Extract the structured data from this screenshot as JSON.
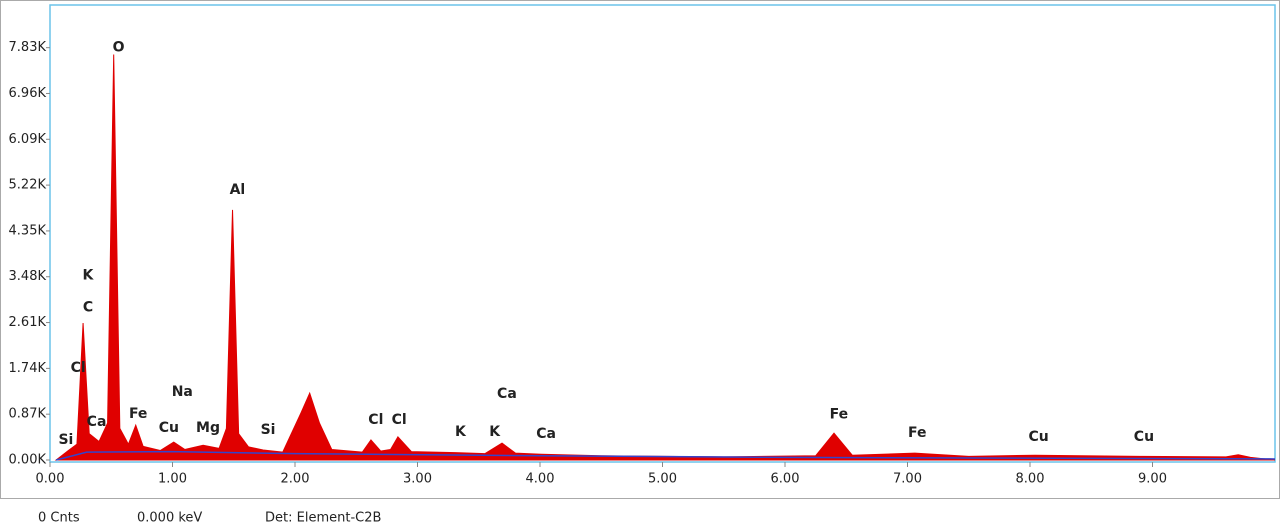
{
  "chart_data": {
    "type": "area",
    "xlim": [
      0,
      10
    ],
    "xticks": [
      {
        "value": 0,
        "label": "0.00"
      },
      {
        "value": 1,
        "label": "1.00"
      },
      {
        "value": 2,
        "label": "2.00"
      },
      {
        "value": 3,
        "label": "3.00"
      },
      {
        "value": 4,
        "label": "4.00"
      },
      {
        "value": 5,
        "label": "5.00"
      },
      {
        "value": 6,
        "label": "6.00"
      },
      {
        "value": 7,
        "label": "7.00"
      },
      {
        "value": 8,
        "label": "8.00"
      },
      {
        "value": 9,
        "label": "9.00"
      }
    ],
    "ylim": [
      0,
      8640
    ],
    "yticks": [
      {
        "value": 0,
        "label": "0.00K"
      },
      {
        "value": 870,
        "label": "0.87K"
      },
      {
        "value": 1740,
        "label": "1.74K"
      },
      {
        "value": 2610,
        "label": "2.61K"
      },
      {
        "value": 3480,
        "label": "3.48K"
      },
      {
        "value": 4350,
        "label": "4.35K"
      },
      {
        "value": 5220,
        "label": "5.22K"
      },
      {
        "value": 6090,
        "label": "6.09K"
      },
      {
        "value": 6960,
        "label": "6.96K"
      },
      {
        "value": 7830,
        "label": "7.83K"
      }
    ],
    "series": [
      {
        "color": "#e00000",
        "x": [
          0.05,
          0.15,
          0.22,
          0.27,
          0.32,
          0.4,
          0.47,
          0.52,
          0.57,
          0.64,
          0.7,
          0.76,
          0.9,
          1.01,
          1.1,
          1.25,
          1.38,
          1.44,
          1.49,
          1.54,
          1.62,
          1.74,
          1.9,
          2.05,
          2.12,
          2.2,
          2.3,
          2.55,
          2.62,
          2.7,
          2.78,
          2.84,
          2.95,
          3.31,
          3.55,
          3.69,
          3.8,
          4.01,
          4.5,
          5.5,
          6.25,
          6.4,
          6.55,
          7.06,
          7.5,
          8.04,
          8.9,
          9.6,
          9.7,
          9.8,
          10.0
        ],
        "values": [
          0,
          180,
          300,
          2600,
          500,
          350,
          700,
          7700,
          600,
          300,
          660,
          260,
          180,
          340,
          200,
          280,
          220,
          600,
          4750,
          500,
          250,
          190,
          150,
          900,
          1270,
          700,
          200,
          150,
          380,
          170,
          200,
          440,
          160,
          140,
          120,
          320,
          130,
          110,
          80,
          60,
          80,
          510,
          90,
          130,
          70,
          90,
          70,
          60,
          100,
          50,
          0
        ]
      },
      {
        "color": "#3344cc",
        "x": [
          0.05,
          0.3,
          1.0,
          2.0,
          4.0,
          6.0,
          10.0
        ],
        "values": [
          0,
          150,
          160,
          120,
          80,
          50,
          20
        ]
      }
    ],
    "peak_labels": [
      {
        "text": "Si",
        "x": 0.13,
        "y": 380
      },
      {
        "text": "Cl",
        "x": 0.23,
        "y": 1750
      },
      {
        "text": "C",
        "x": 0.31,
        "y": 2900
      },
      {
        "text": "K",
        "x": 0.31,
        "y": 3500
      },
      {
        "text": "O",
        "x": 0.56,
        "y": 7830
      },
      {
        "text": "Ca",
        "x": 0.38,
        "y": 720
      },
      {
        "text": "Fe",
        "x": 0.72,
        "y": 870
      },
      {
        "text": "Cu",
        "x": 0.97,
        "y": 610
      },
      {
        "text": "Na",
        "x": 1.08,
        "y": 1290
      },
      {
        "text": "Mg",
        "x": 1.29,
        "y": 610
      },
      {
        "text": "Al",
        "x": 1.53,
        "y": 5130
      },
      {
        "text": "Si",
        "x": 1.78,
        "y": 570
      },
      {
        "text": "Cl",
        "x": 2.66,
        "y": 760
      },
      {
        "text": "Cl",
        "x": 2.85,
        "y": 760
      },
      {
        "text": "K",
        "x": 3.35,
        "y": 530
      },
      {
        "text": "K",
        "x": 3.63,
        "y": 530
      },
      {
        "text": "Ca",
        "x": 3.73,
        "y": 1250
      },
      {
        "text": "Ca",
        "x": 4.05,
        "y": 490
      },
      {
        "text": "Fe",
        "x": 6.44,
        "y": 860
      },
      {
        "text": "Fe",
        "x": 7.08,
        "y": 510
      },
      {
        "text": "Cu",
        "x": 8.07,
        "y": 440
      },
      {
        "text": "Cu",
        "x": 8.93,
        "y": 440
      }
    ],
    "status": {
      "counts": "0 Cnts",
      "energy": "0.000 keV",
      "detector": "Det: Element-C2B"
    }
  }
}
